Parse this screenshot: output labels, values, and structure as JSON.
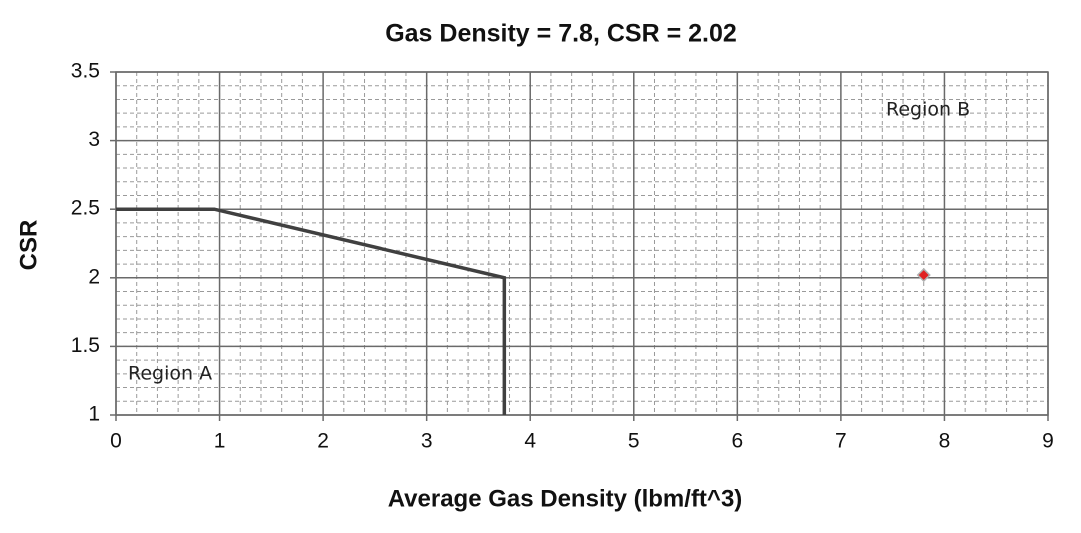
{
  "chart_data": {
    "type": "line",
    "title": "Gas Density = 7.8, CSR = 2.02",
    "x_label": "Average Gas Density (lbm/ft^3)",
    "y_label": "CSR",
    "xlim": [
      0,
      9
    ],
    "xticks": [
      0,
      1,
      2,
      3,
      4,
      5,
      6,
      7,
      8,
      9
    ],
    "ylim": [
      1,
      3.5
    ],
    "yticks": [
      1,
      1.5,
      2,
      2.5,
      3,
      3.5
    ],
    "grid": true,
    "minor_grid_step": [
      0.2,
      0.1
    ],
    "annotations": [
      "Region A",
      "Region B"
    ],
    "series": [
      {
        "type": "line",
        "color": "#404040",
        "x": [
          0,
          0.95,
          3.75,
          3.75
        ],
        "values": [
          2.5,
          2.5,
          2.0,
          1.0
        ]
      },
      {
        "type": "scatter",
        "color": "#e02020",
        "x": [
          7.8
        ],
        "values": [
          2.02
        ]
      }
    ]
  }
}
